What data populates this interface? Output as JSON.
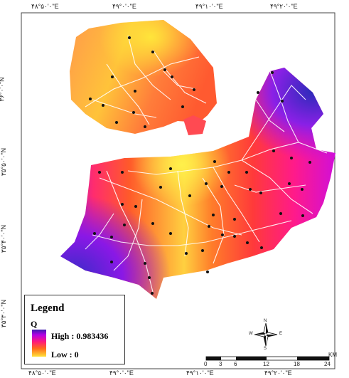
{
  "legend": {
    "title": "Legend",
    "variable": "Q",
    "high_label": "High : 0.983436",
    "low_label": "Low : 0",
    "high_value": 0.983436,
    "low_value": 0,
    "colors": [
      "#3b1db0",
      "#b500e6",
      "#ff1a7a",
      "#ff6a1a",
      "#ffe23a"
    ]
  },
  "graticule": {
    "top": [
      "۴۸°۵۰'۰\"E",
      "۴۹°۰'۰\"E",
      "۴۹°۱۰'۰\"E",
      "۴۹°۲۰'۰\"E"
    ],
    "bottom": [
      "۴۸°۵۰'۰\"E",
      "۴۹°۰'۰\"E",
      "۴۹°۱۰'۰\"E",
      "۴۹°۲۰'۰\"E"
    ],
    "left": [
      "۳۶°۰'۰\"N",
      "۳۵°۵۰'۰\"N",
      "۳۵°۴۰'۰\"N",
      "۳۵°۳۰'۰\"N"
    ]
  },
  "scale_bar": {
    "labels": [
      "0",
      "3",
      "6",
      "12",
      "18",
      "24"
    ],
    "unit": "KM"
  },
  "north_arrow": {
    "icon": "compass-rose-icon",
    "labels": [
      "N",
      "E",
      "S",
      "W"
    ]
  }
}
